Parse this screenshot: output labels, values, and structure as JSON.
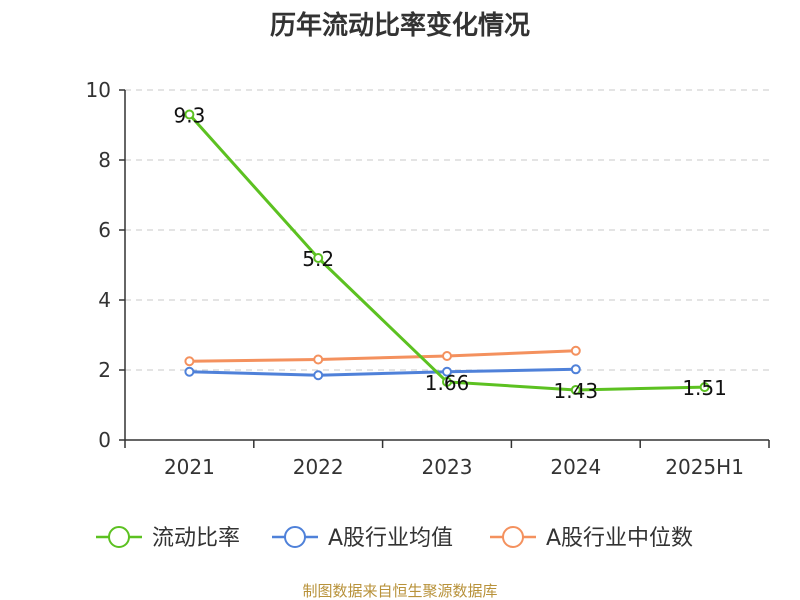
{
  "chart_data": {
    "type": "line",
    "title": "历年流动比率变化情况",
    "categories": [
      "2021",
      "2022",
      "2023",
      "2024",
      "2025H1"
    ],
    "ylim": [
      0,
      10
    ],
    "yticks": [
      0,
      2,
      4,
      6,
      8,
      10
    ],
    "grid": true,
    "legend_position": "bottom",
    "series": [
      {
        "name": "流动比率",
        "color": "#5cc121",
        "values": [
          9.3,
          5.2,
          1.66,
          1.43,
          1.51
        ],
        "labels": [
          "9.3",
          "5.2",
          "1.66",
          "1.43",
          "1.51"
        ]
      },
      {
        "name": "A股行业均值",
        "color": "#4f81d9",
        "values": [
          1.95,
          1.85,
          1.95,
          2.02,
          null
        ]
      },
      {
        "name": "A股行业中位数",
        "color": "#f4915e",
        "values": [
          2.25,
          2.3,
          2.4,
          2.55,
          null
        ]
      }
    ]
  },
  "source": "制图数据来自恒生聚源数据库"
}
